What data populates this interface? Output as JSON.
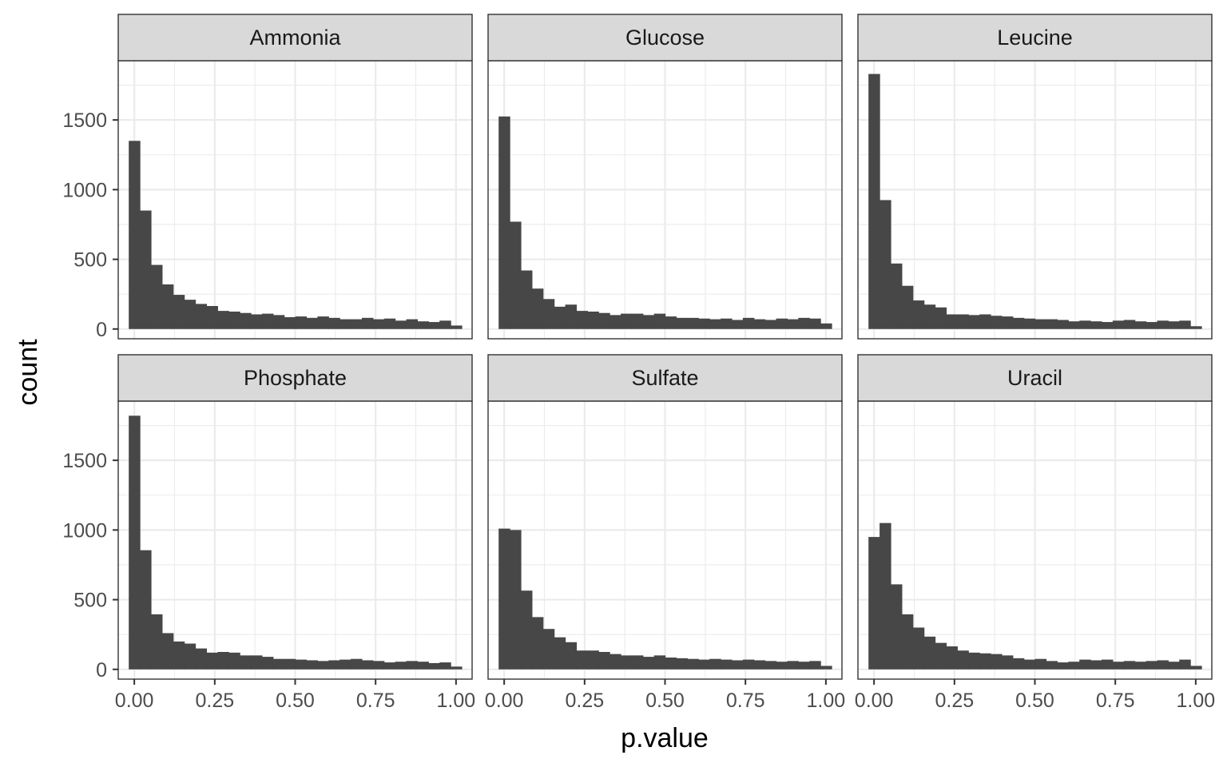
{
  "chart_data": {
    "type": "bar",
    "subtype": "faceted-histogram",
    "title": "",
    "xlabel": "p.value",
    "ylabel": "count",
    "xlim": [
      -0.05,
      1.05
    ],
    "ylim": [
      -70,
      1925
    ],
    "x_ticks": [
      0,
      0.25,
      0.5,
      0.75,
      1
    ],
    "x_tick_labels": [
      "0.00",
      "0.25",
      "0.50",
      "0.75",
      "1.00"
    ],
    "y_ticks": [
      0,
      500,
      1000,
      1500
    ],
    "y_tick_labels": [
      "0",
      "500",
      "1000",
      "1500"
    ],
    "bins": 30,
    "bin_width": 0.0345,
    "first_bin_center": 0,
    "bar_color": "#474747",
    "grid": true,
    "layout": {
      "rows": 2,
      "cols": 3
    },
    "facets": [
      {
        "name": "Ammonia",
        "values": [
          1350,
          850,
          460,
          320,
          245,
          210,
          180,
          165,
          130,
          125,
          115,
          105,
          110,
          100,
          85,
          90,
          80,
          90,
          80,
          70,
          70,
          80,
          70,
          75,
          60,
          70,
          55,
          50,
          60,
          25
        ]
      },
      {
        "name": "Glucose",
        "values": [
          1525,
          770,
          420,
          290,
          215,
          160,
          175,
          130,
          125,
          115,
          100,
          110,
          110,
          100,
          110,
          90,
          80,
          80,
          75,
          70,
          75,
          65,
          80,
          70,
          65,
          75,
          70,
          80,
          75,
          40
        ]
      },
      {
        "name": "Leucine",
        "values": [
          1830,
          925,
          470,
          310,
          205,
          175,
          155,
          105,
          105,
          100,
          105,
          95,
          90,
          80,
          75,
          70,
          70,
          65,
          55,
          60,
          55,
          50,
          60,
          65,
          55,
          50,
          60,
          55,
          60,
          20
        ]
      },
      {
        "name": "Phosphate",
        "values": [
          1820,
          855,
          395,
          260,
          200,
          185,
          150,
          120,
          125,
          120,
          100,
          100,
          90,
          75,
          75,
          70,
          65,
          60,
          65,
          70,
          75,
          65,
          60,
          50,
          55,
          60,
          55,
          45,
          50,
          20
        ]
      },
      {
        "name": "Sulfate",
        "values": [
          1010,
          1000,
          565,
          375,
          290,
          230,
          195,
          135,
          135,
          125,
          110,
          100,
          100,
          90,
          100,
          85,
          80,
          75,
          70,
          75,
          70,
          65,
          70,
          65,
          60,
          55,
          60,
          55,
          60,
          25
        ]
      },
      {
        "name": "Uracil",
        "values": [
          950,
          1050,
          610,
          395,
          300,
          235,
          190,
          165,
          135,
          120,
          115,
          110,
          100,
          80,
          70,
          75,
          60,
          50,
          55,
          70,
          65,
          70,
          55,
          60,
          55,
          60,
          65,
          55,
          70,
          25
        ]
      }
    ]
  }
}
